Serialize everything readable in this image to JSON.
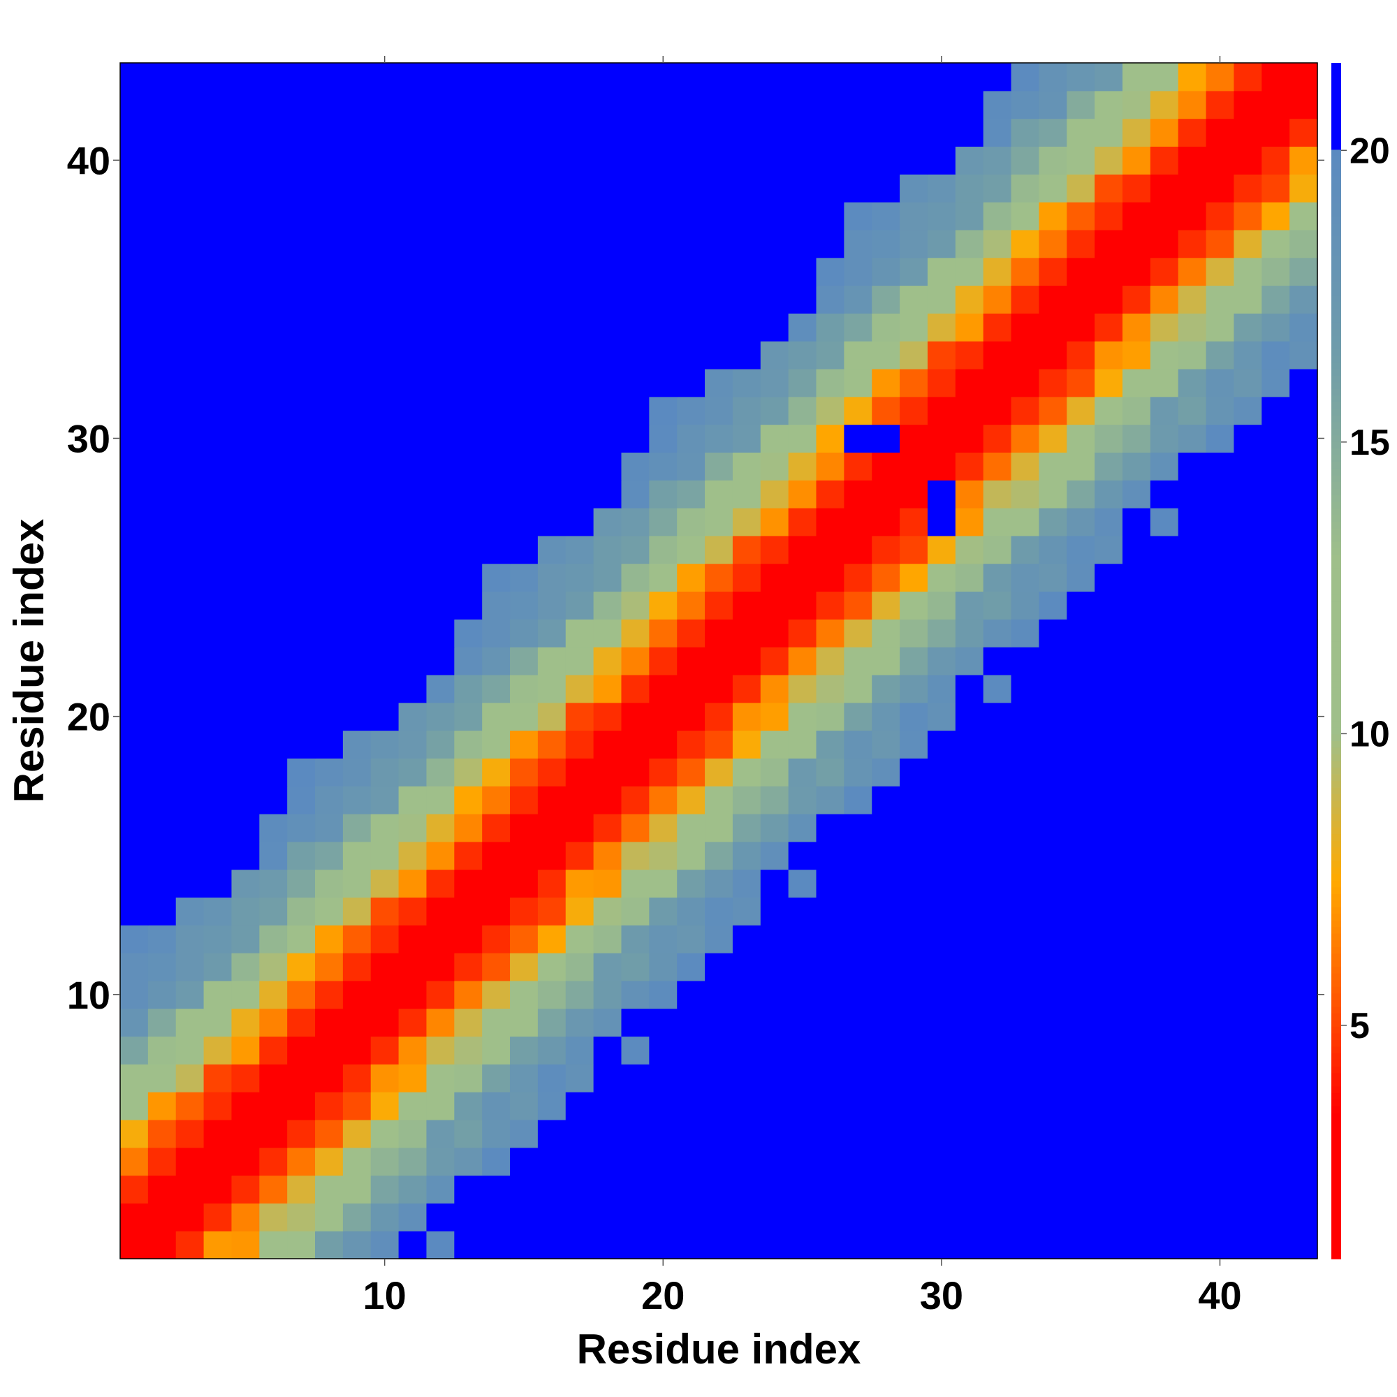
{
  "chart_data": {
    "type": "heatmap",
    "title": "",
    "xlabel": "Residue index",
    "ylabel": "Residue index",
    "n": 43,
    "xlim": [
      0.5,
      43.5
    ],
    "ylim": [
      0.5,
      43.5
    ],
    "x_ticks": [
      "10",
      "20",
      "30",
      "40"
    ],
    "y_ticks": [
      "10",
      "20",
      "30",
      "40"
    ],
    "x_tick_values": [
      10,
      20,
      30,
      40
    ],
    "y_tick_values": [
      10,
      20,
      30,
      40
    ],
    "colorbar": {
      "ticks": [
        "5",
        "10",
        "15",
        "20"
      ],
      "tick_values": [
        5,
        10,
        15,
        20
      ],
      "range": [
        1,
        21.5
      ],
      "cutoff": 20,
      "cutoff_color": "#0000ff",
      "stops": [
        {
          "value": 1,
          "color": "#ff0000"
        },
        {
          "value": 3.5,
          "color": "#ff0000"
        },
        {
          "value": 5.5,
          "color": "#ff5a00"
        },
        {
          "value": 7.5,
          "color": "#ffaa00"
        },
        {
          "value": 10,
          "color": "#9fbf8a"
        },
        {
          "value": 13,
          "color": "#9fbf8a"
        },
        {
          "value": 16.5,
          "color": "#6f9caa"
        },
        {
          "value": 20,
          "color": "#5b8ac0"
        }
      ]
    },
    "value_model": {
      "description_source": "distance map read from the image (diagonal band of contact distances)",
      "d1": 2.4,
      "d2": 4.5,
      "d3": 6.0,
      "d4": 8.0,
      "d5": 10.5,
      "d6": 13.0,
      "d7": 16.0,
      "slope_beyond": 1.2,
      "ripple": [
        0.0,
        0.9,
        -0.6,
        0.5,
        -0.8,
        0.3,
        1.1,
        -0.4,
        0.6,
        -1.0,
        0.2,
        0.8,
        -0.3
      ]
    },
    "values_note": "Cell values below are in distance units (Å-like); >20 shown as cutoff blue.",
    "values": []
  }
}
